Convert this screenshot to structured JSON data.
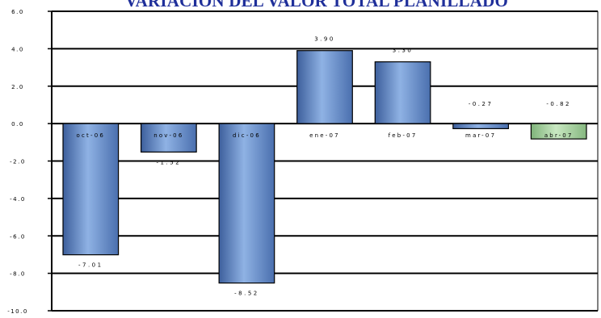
{
  "chart_data": {
    "type": "bar",
    "title": "VARIACIÓN DEL VALOR TOTAL PLANILLADO",
    "categories": [
      "oct-06",
      "nov-06",
      "dic-06",
      "ene-07",
      "feb-07",
      "mar-07",
      "abr-07"
    ],
    "values": [
      -7.01,
      -1.52,
      -8.52,
      3.9,
      3.3,
      -0.27,
      -0.82
    ],
    "value_labels": [
      "-7.01",
      "-1.52",
      "-8.52",
      "3.90",
      "3.30",
      "-0.27",
      "-0.82"
    ],
    "ylim": [
      -10.0,
      6.0
    ],
    "yticks": [
      "6.0",
      "4.0",
      "2.0",
      "0.0",
      "-2.0",
      "-4.0",
      "-6.0",
      "-8.0",
      "-10.0"
    ],
    "xlabel": "",
    "ylabel": "",
    "grid": true,
    "legend": "none",
    "colors": {
      "bar_fill": "#5a82c0",
      "bar_fill_highlight": "#a8d0a0",
      "bar_stroke": "#000000",
      "gridline": "#000000",
      "title": "#1f2f9a"
    }
  }
}
